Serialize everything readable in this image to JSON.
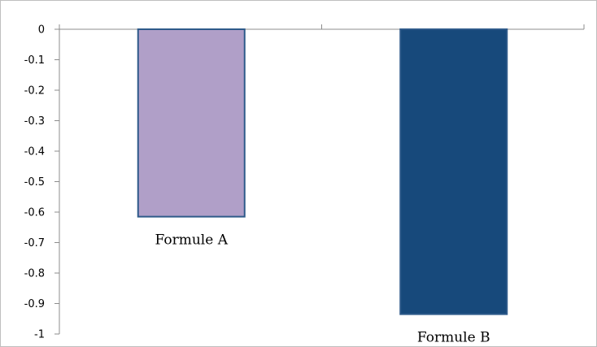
{
  "chart_data": {
    "type": "bar",
    "categories": [
      "Formule A",
      "Formule B"
    ],
    "values": [
      -0.615,
      -0.935
    ],
    "ylim": [
      -1,
      0
    ],
    "yticks": [
      "0",
      "-0.1",
      "-0.2",
      "-0.3",
      "-0.4",
      "-0.5",
      "-0.6",
      "-0.7",
      "-0.8",
      "-0.9",
      "-1"
    ],
    "title": "",
    "xlabel": "",
    "ylabel": "",
    "grid": false,
    "bar_colors": [
      "#b09fc8",
      "#17497b"
    ],
    "bar_border_color": "#2e5a8a"
  }
}
